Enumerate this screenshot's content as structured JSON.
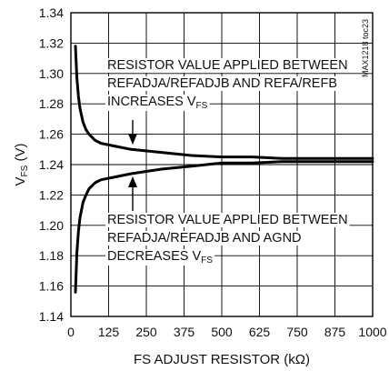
{
  "chart_data": {
    "type": "line",
    "ylabel_main": "V",
    "ylabel_sub": "FS",
    "ylabel_suffix": " (V)",
    "xlabel": "FS ADJUST RESISTOR (kΩ)",
    "xlim": [
      0,
      1000
    ],
    "ylim": [
      1.14,
      1.34
    ],
    "x_ticks": [
      "0",
      "125",
      "250",
      "375",
      "500",
      "625",
      "750",
      "875",
      "1000"
    ],
    "y_ticks": [
      "1.34",
      "1.32",
      "1.30",
      "1.28",
      "1.26",
      "1.24",
      "1.22",
      "1.20",
      "1.18",
      "1.16",
      "1.14"
    ],
    "grid": true,
    "series": [
      {
        "x": [
          15,
          20,
          25,
          30,
          40,
          50,
          60,
          80,
          100,
          150,
          200,
          300,
          400,
          500,
          600,
          700,
          800,
          900,
          1000
        ],
        "values": [
          1.318,
          1.297,
          1.285,
          1.277,
          1.268,
          1.263,
          1.26,
          1.256,
          1.254,
          1.252,
          1.25,
          1.248,
          1.246,
          1.245,
          1.245,
          1.244,
          1.244,
          1.244,
          1.244
        ]
      },
      {
        "x": [
          15,
          20,
          25,
          30,
          40,
          50,
          60,
          80,
          100,
          150,
          200,
          300,
          400,
          500,
          600,
          700,
          800,
          900,
          1000
        ],
        "values": [
          1.156,
          1.182,
          1.196,
          1.205,
          1.215,
          1.22,
          1.224,
          1.228,
          1.23,
          1.232,
          1.234,
          1.237,
          1.239,
          1.241,
          1.241,
          1.242,
          1.242,
          1.242,
          1.242
        ]
      }
    ],
    "annotations": {
      "upper": {
        "line1": "RESISTOR VALUE APPLIED BETWEEN",
        "line2": "REFADJA/REFADJB AND REFA/REFB",
        "line3_main": "INCREASES V",
        "line3_sub": "FS"
      },
      "lower": {
        "line1": "RESISTOR VALUE APPLIED BETWEEN",
        "line2": "REFADJA/REFADJB AND AGND",
        "line3_main": "DECREASES V",
        "line3_sub": "FS"
      }
    },
    "figure_tag": "MAX1218 toc23"
  }
}
